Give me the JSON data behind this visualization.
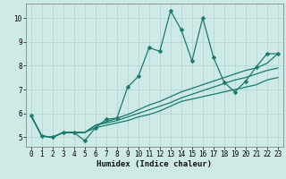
{
  "title": "",
  "xlabel": "Humidex (Indice chaleur)",
  "bg_color": "#cdeae6",
  "grid_color": "#b0d4d0",
  "line_color": "#1a7a6e",
  "xlim": [
    -0.5,
    23.5
  ],
  "ylim": [
    4.6,
    10.6
  ],
  "xticks": [
    0,
    1,
    2,
    3,
    4,
    5,
    6,
    7,
    8,
    9,
    10,
    11,
    12,
    13,
    14,
    15,
    16,
    17,
    18,
    19,
    20,
    21,
    22,
    23
  ],
  "yticks": [
    5,
    6,
    7,
    8,
    9,
    10
  ],
  "series": [
    [
      5.9,
      5.05,
      5.0,
      5.2,
      5.2,
      4.85,
      5.4,
      5.75,
      5.8,
      7.1,
      7.55,
      8.75,
      8.6,
      10.3,
      9.5,
      8.2,
      10.0,
      8.35,
      7.3,
      6.9,
      7.35,
      7.95,
      8.5,
      8.5
    ],
    [
      5.9,
      5.05,
      5.0,
      5.2,
      5.2,
      5.2,
      5.4,
      5.5,
      5.6,
      5.7,
      5.85,
      5.95,
      6.1,
      6.3,
      6.5,
      6.6,
      6.7,
      6.8,
      6.9,
      7.0,
      7.1,
      7.2,
      7.4,
      7.5
    ],
    [
      5.9,
      5.05,
      5.0,
      5.2,
      5.2,
      5.2,
      5.5,
      5.6,
      5.7,
      5.85,
      6.0,
      6.15,
      6.3,
      6.45,
      6.65,
      6.8,
      6.95,
      7.1,
      7.25,
      7.4,
      7.5,
      7.65,
      7.8,
      7.9
    ],
    [
      5.9,
      5.05,
      5.0,
      5.2,
      5.2,
      5.2,
      5.5,
      5.65,
      5.8,
      5.95,
      6.15,
      6.35,
      6.5,
      6.7,
      6.9,
      7.05,
      7.2,
      7.35,
      7.5,
      7.65,
      7.8,
      7.9,
      8.1,
      8.5
    ]
  ],
  "tick_fontsize": 5.5,
  "xlabel_fontsize": 6.5,
  "marker_size": 2.5,
  "linewidth": 0.9
}
